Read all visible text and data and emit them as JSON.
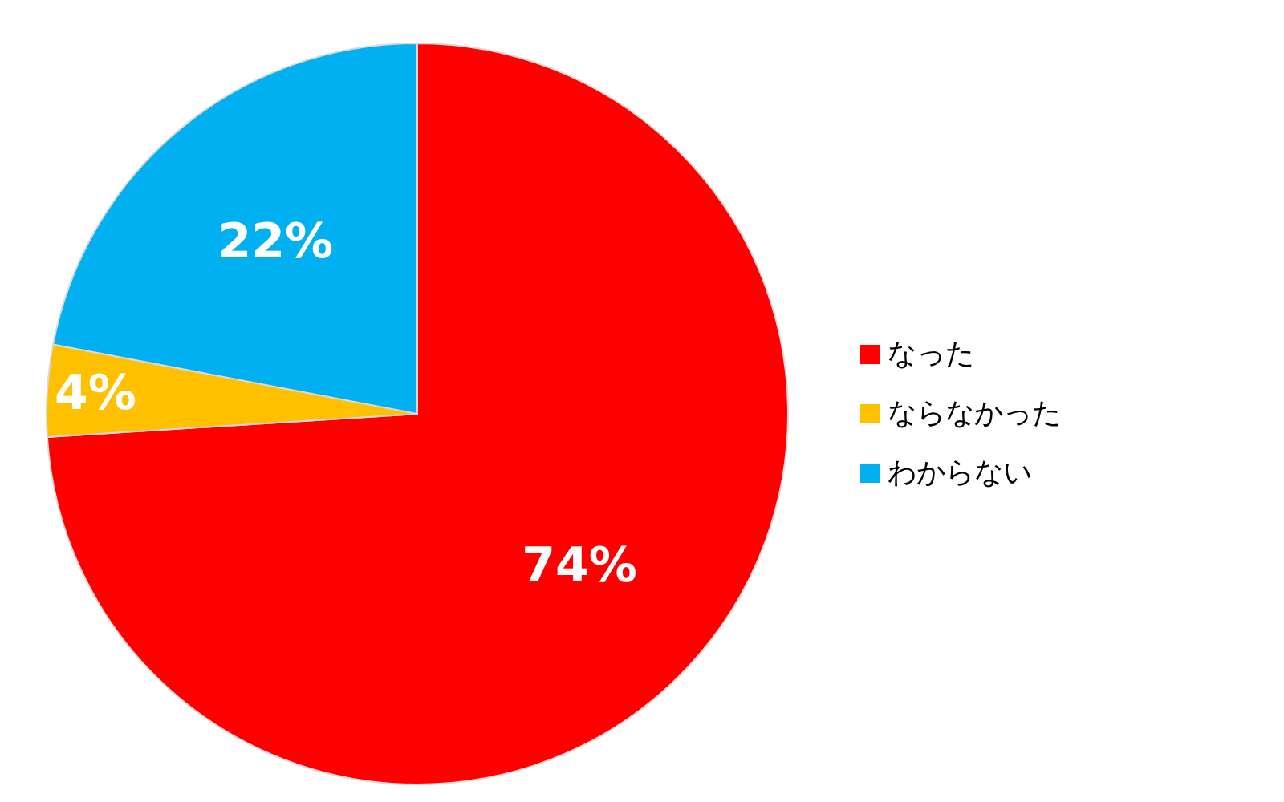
{
  "chart_data": {
    "type": "pie",
    "categories": [
      "なった",
      "ならなかった",
      "わからない"
    ],
    "values": [
      74,
      4,
      22
    ],
    "colors": [
      "#ff0000",
      "#ffc000",
      "#00b0f0"
    ],
    "value_labels": [
      "74%",
      "4%",
      "22%"
    ],
    "legend": "right"
  }
}
